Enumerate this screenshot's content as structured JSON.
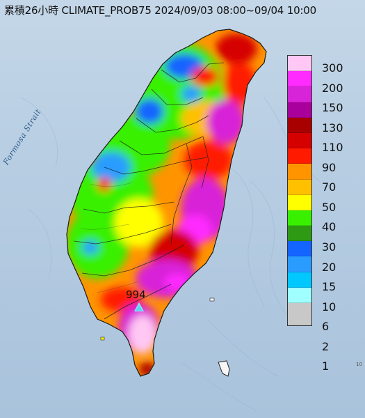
{
  "title": "累積26小時 CLIMATE_PROB75 2024/09/03 08:00~09/04 10:00",
  "strait_label": "Formosa Strait",
  "peak_value": "994",
  "edge_mark": "10",
  "legend": {
    "labels": [
      "300",
      "200",
      "150",
      "130",
      "110",
      "90",
      "70",
      "50",
      "40",
      "30",
      "20",
      "15",
      "10",
      "6",
      "2",
      "1"
    ],
    "colors": [
      "#ffc8f4",
      "#ff2bff",
      "#d824d8",
      "#a9009b",
      "#a80000",
      "#d50000",
      "#ff1a00",
      "#ff9400",
      "#ffc000",
      "#ffff00",
      "#38f000",
      "#2e9a14",
      "#1464ff",
      "#2a9cff",
      "#00c8ff",
      "#a0ffff",
      "#c8c8c8"
    ]
  },
  "map_colors": {
    "sea": "#b7cde2",
    "land_low": "#4b9c23",
    "land_mid": "#ff9400",
    "land_high": "#d824d8"
  }
}
